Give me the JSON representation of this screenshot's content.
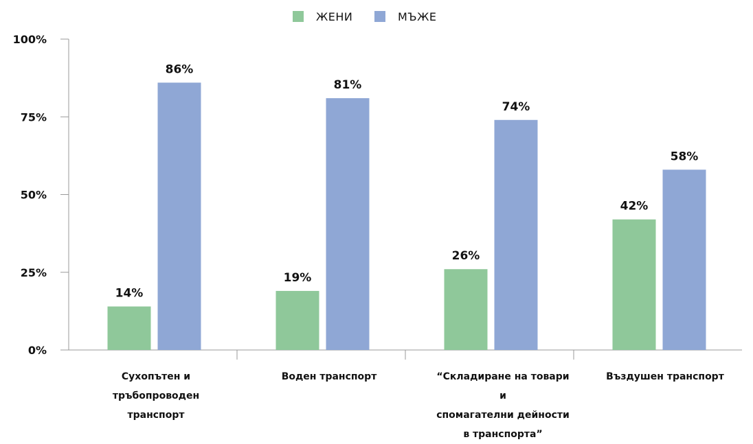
{
  "chart_data": {
    "type": "bar",
    "categories": [
      [
        "Сухопътен и",
        "тръбопроводен",
        "транспорт"
      ],
      [
        "Воден транспорт"
      ],
      [
        "“Складиране на товари",
        "и",
        "спомагателни дейности",
        "в транспорта”"
      ],
      [
        "Въздушен транспорт"
      ]
    ],
    "series": [
      {
        "name": "ЖЕНИ",
        "color": "#8fc89a",
        "values": [
          14,
          19,
          26,
          42
        ],
        "labels": [
          "14%",
          "19%",
          "26%",
          "42%"
        ]
      },
      {
        "name": "МЪЖЕ",
        "color": "#8fa7d5",
        "values": [
          86,
          81,
          74,
          58
        ],
        "labels": [
          "86%",
          "81%",
          "74%",
          "58%"
        ]
      }
    ],
    "ylim": [
      0,
      100
    ],
    "yticks": [
      "0%",
      "25%",
      "50%",
      "75%",
      "100%"
    ],
    "ytick_values": [
      0,
      25,
      50,
      75,
      100
    ],
    "legend_position": "top-center",
    "grid": false
  }
}
